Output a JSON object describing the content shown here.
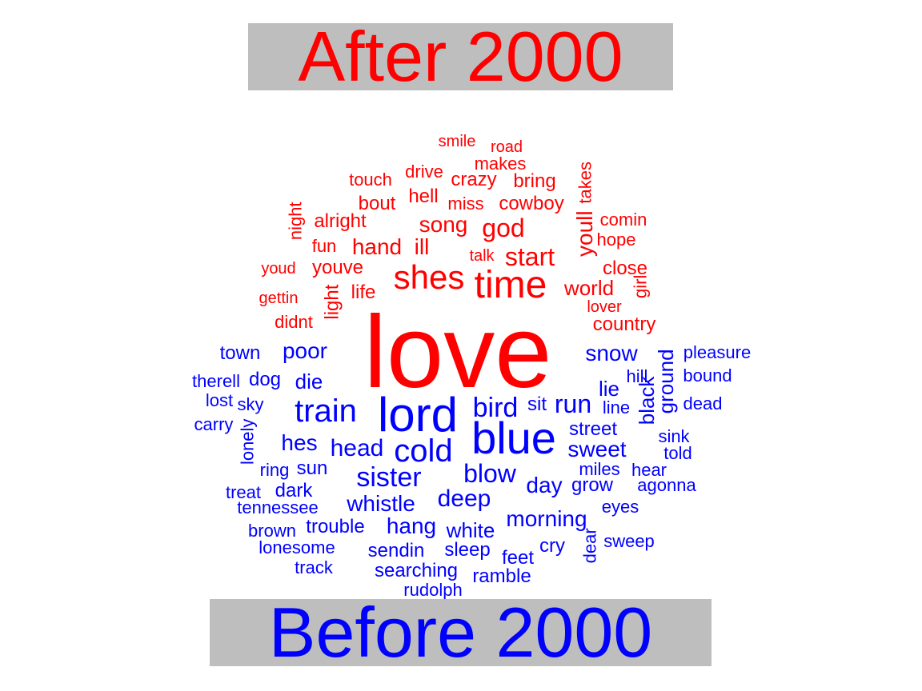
{
  "chart_data": {
    "type": "wordcloud",
    "colors": {
      "after": "#ff0000",
      "before": "#0000ff",
      "banner_bg": "#bebebe"
    },
    "groups": [
      {
        "name": "After 2000",
        "color": "#ff0000",
        "words": [
          "love",
          "time",
          "shes",
          "start",
          "god",
          "song",
          "hand",
          "ill",
          "youll",
          "world",
          "youve",
          "country",
          "life",
          "light",
          "hell",
          "cowboy",
          "miss",
          "bring",
          "crazy",
          "makes",
          "drive",
          "touch",
          "bout",
          "alright",
          "night",
          "takes",
          "comin",
          "hope",
          "close",
          "girl",
          "lover",
          "talk",
          "fun",
          "youd",
          "gettin",
          "didnt",
          "road",
          "smile"
        ]
      },
      {
        "name": "Before 2000",
        "color": "#0000ff",
        "words": [
          "blue",
          "lord",
          "train",
          "cold",
          "bird",
          "run",
          "sister",
          "blow",
          "deep",
          "head",
          "snow",
          "poor",
          "hes",
          "whistle",
          "day",
          "hang",
          "white",
          "sweet",
          "morning",
          "lie",
          "street",
          "black",
          "ground",
          "die",
          "dog",
          "sit",
          "sun",
          "town",
          "therell",
          "lost",
          "sky",
          "carry",
          "lonely",
          "ring",
          "treat",
          "dark",
          "tennessee",
          "trouble",
          "brown",
          "lonesome",
          "track",
          "sendin",
          "sleep",
          "feet",
          "cry",
          "searching",
          "ramble",
          "rudolph",
          "grow",
          "miles",
          "hear",
          "agonna",
          "eyes",
          "sweep",
          "dear",
          "line",
          "hill",
          "pleasure",
          "bound",
          "dead",
          "sink",
          "told"
        ]
      }
    ]
  },
  "headers": {
    "top": "After 2000",
    "bottom": "Before 2000"
  },
  "words": [
    {
      "t": "love",
      "g": 0
    },
    {
      "t": "time",
      "g": 0
    },
    {
      "t": "shes",
      "g": 0
    },
    {
      "t": "start",
      "g": 0
    },
    {
      "t": "god",
      "g": 0
    },
    {
      "t": "song",
      "g": 0
    },
    {
      "t": "hand",
      "g": 0
    },
    {
      "t": "ill",
      "g": 0
    },
    {
      "t": "youll",
      "g": 0
    },
    {
      "t": "world",
      "g": 0
    },
    {
      "t": "youve",
      "g": 0
    },
    {
      "t": "country",
      "g": 0
    },
    {
      "t": "life",
      "g": 0
    },
    {
      "t": "light",
      "g": 0
    },
    {
      "t": "hell",
      "g": 0
    },
    {
      "t": "cowboy",
      "g": 0
    },
    {
      "t": "miss",
      "g": 0
    },
    {
      "t": "bring",
      "g": 0
    },
    {
      "t": "crazy",
      "g": 0
    },
    {
      "t": "makes",
      "g": 0
    },
    {
      "t": "drive",
      "g": 0
    },
    {
      "t": "touch",
      "g": 0
    },
    {
      "t": "bout",
      "g": 0
    },
    {
      "t": "alright",
      "g": 0
    },
    {
      "t": "night",
      "g": 0
    },
    {
      "t": "takes",
      "g": 0
    },
    {
      "t": "comin",
      "g": 0
    },
    {
      "t": "hope",
      "g": 0
    },
    {
      "t": "close",
      "g": 0
    },
    {
      "t": "girl",
      "g": 0
    },
    {
      "t": "lover",
      "g": 0
    },
    {
      "t": "talk",
      "g": 0
    },
    {
      "t": "fun",
      "g": 0
    },
    {
      "t": "youd",
      "g": 0
    },
    {
      "t": "gettin",
      "g": 0
    },
    {
      "t": "didnt",
      "g": 0
    },
    {
      "t": "road",
      "g": 0
    },
    {
      "t": "smile",
      "g": 0
    },
    {
      "t": "blue",
      "g": 1
    },
    {
      "t": "lord",
      "g": 1
    },
    {
      "t": "train",
      "g": 1
    },
    {
      "t": "cold",
      "g": 1
    },
    {
      "t": "bird",
      "g": 1
    },
    {
      "t": "run",
      "g": 1
    },
    {
      "t": "sister",
      "g": 1
    },
    {
      "t": "blow",
      "g": 1
    },
    {
      "t": "deep",
      "g": 1
    },
    {
      "t": "head",
      "g": 1
    },
    {
      "t": "snow",
      "g": 1
    },
    {
      "t": "poor",
      "g": 1
    },
    {
      "t": "hes",
      "g": 1
    },
    {
      "t": "whistle",
      "g": 1
    },
    {
      "t": "day",
      "g": 1
    },
    {
      "t": "hang",
      "g": 1
    },
    {
      "t": "white",
      "g": 1
    },
    {
      "t": "sweet",
      "g": 1
    },
    {
      "t": "morning",
      "g": 1
    },
    {
      "t": "lie",
      "g": 1
    },
    {
      "t": "street",
      "g": 1
    },
    {
      "t": "black",
      "g": 1
    },
    {
      "t": "ground",
      "g": 1
    },
    {
      "t": "die",
      "g": 1
    },
    {
      "t": "dog",
      "g": 1
    },
    {
      "t": "sit",
      "g": 1
    },
    {
      "t": "sun",
      "g": 1
    },
    {
      "t": "town",
      "g": 1
    },
    {
      "t": "therell",
      "g": 1
    },
    {
      "t": "lost",
      "g": 1
    },
    {
      "t": "sky",
      "g": 1
    },
    {
      "t": "carry",
      "g": 1
    },
    {
      "t": "lonely",
      "g": 1
    },
    {
      "t": "ring",
      "g": 1
    },
    {
      "t": "treat",
      "g": 1
    },
    {
      "t": "dark",
      "g": 1
    },
    {
      "t": "tennessee",
      "g": 1
    },
    {
      "t": "trouble",
      "g": 1
    },
    {
      "t": "brown",
      "g": 1
    },
    {
      "t": "lonesome",
      "g": 1
    },
    {
      "t": "track",
      "g": 1
    },
    {
      "t": "sendin",
      "g": 1
    },
    {
      "t": "sleep",
      "g": 1
    },
    {
      "t": "feet",
      "g": 1
    },
    {
      "t": "cry",
      "g": 1
    },
    {
      "t": "searching",
      "g": 1
    },
    {
      "t": "ramble",
      "g": 1
    },
    {
      "t": "rudolph",
      "g": 1
    },
    {
      "t": "grow",
      "g": 1
    },
    {
      "t": "miles",
      "g": 1
    },
    {
      "t": "hear",
      "g": 1
    },
    {
      "t": "agonna",
      "g": 1
    },
    {
      "t": "eyes",
      "g": 1
    },
    {
      "t": "sweep",
      "g": 1
    },
    {
      "t": "dear",
      "g": 1
    },
    {
      "t": "line",
      "g": 1
    },
    {
      "t": "hill",
      "g": 1
    },
    {
      "t": "pleasure",
      "g": 1
    },
    {
      "t": "bound",
      "g": 1
    },
    {
      "t": "dead",
      "g": 1
    },
    {
      "t": "sink",
      "g": 1
    },
    {
      "t": "told",
      "g": 1
    }
  ]
}
